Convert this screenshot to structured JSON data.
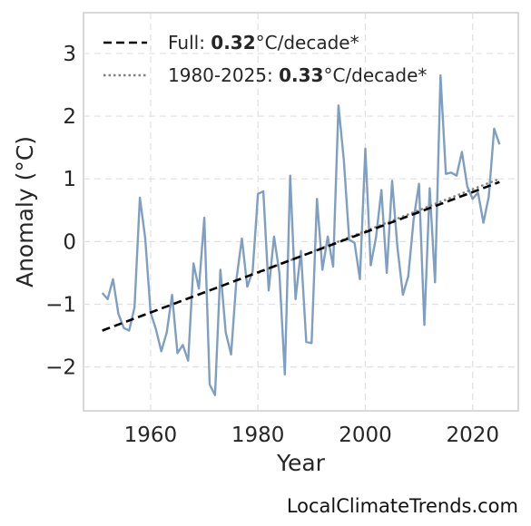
{
  "chart_data": {
    "type": "line",
    "xlabel": "Year",
    "ylabel": "Anomaly (°C)",
    "xlim": [
      1947.5,
      2028.5
    ],
    "ylim": [
      -2.7,
      3.65
    ],
    "x_ticks": [
      1960,
      1980,
      2000,
      2020
    ],
    "y_ticks": [
      -2,
      -1,
      0,
      1,
      2,
      3
    ],
    "y_tick_labels": [
      "−2",
      "−1",
      "0",
      "1",
      "2",
      "3"
    ],
    "grid": true,
    "legend_position": "top-left",
    "series": [
      {
        "style": "line",
        "color": "#7f9fc2",
        "x": [
          1951,
          1952,
          1953,
          1954,
          1955,
          1956,
          1957,
          1958,
          1959,
          1960,
          1961,
          1962,
          1963,
          1964,
          1965,
          1966,
          1967,
          1968,
          1969,
          1970,
          1971,
          1972,
          1973,
          1974,
          1975,
          1976,
          1977,
          1978,
          1979,
          1980,
          1981,
          1982,
          1983,
          1984,
          1985,
          1986,
          1987,
          1988,
          1989,
          1990,
          1991,
          1992,
          1993,
          1994,
          1995,
          1996,
          1997,
          1998,
          1999,
          2000,
          2001,
          2002,
          2003,
          2004,
          2005,
          2006,
          2007,
          2008,
          2009,
          2010,
          2011,
          2012,
          2013,
          2014,
          2015,
          2016,
          2017,
          2018,
          2019,
          2020,
          2021,
          2022,
          2023,
          2024,
          2025
        ],
        "y": [
          -0.82,
          -0.92,
          -0.6,
          -1.15,
          -1.38,
          -1.42,
          -1.05,
          0.7,
          0.05,
          -1.13,
          -1.4,
          -1.75,
          -1.45,
          -0.85,
          -1.78,
          -1.65,
          -1.9,
          -0.35,
          -0.75,
          0.38,
          -2.28,
          -2.45,
          -0.45,
          -1.45,
          -1.8,
          -0.6,
          0.05,
          -0.72,
          -0.48,
          0.76,
          0.8,
          -0.78,
          0.08,
          -0.5,
          -2.12,
          1.05,
          -0.92,
          -0.15,
          -1.6,
          -1.62,
          0.68,
          -0.45,
          0.08,
          -0.4,
          2.17,
          1.3,
          0.03,
          -0.02,
          -0.6,
          1.48,
          -0.38,
          0.07,
          0.82,
          -0.5,
          0.97,
          -0.1,
          -0.85,
          -0.55,
          0.35,
          0.92,
          -1.33,
          0.85,
          -0.65,
          2.65,
          1.08,
          1.1,
          1.05,
          1.43,
          0.88,
          0.68,
          0.78,
          0.3,
          0.72,
          1.8,
          1.55
        ]
      },
      {
        "name": "Full",
        "style": "dashed",
        "color": "#000000",
        "x": [
          1951,
          2025
        ],
        "y": [
          -1.42,
          0.95
        ]
      },
      {
        "name": "1980-2025",
        "style": "dotted",
        "color": "#808080",
        "x": [
          1980,
          2025
        ],
        "y": [
          -0.5,
          1.0
        ]
      }
    ],
    "legend": [
      {
        "prefix": "Full: ",
        "value": "0.32",
        "suffix": "°C/decade*"
      },
      {
        "prefix": "1980-2025: ",
        "value": "0.33",
        "suffix": "°C/decade*"
      }
    ]
  },
  "footer": "LocalClimateTrends.com"
}
